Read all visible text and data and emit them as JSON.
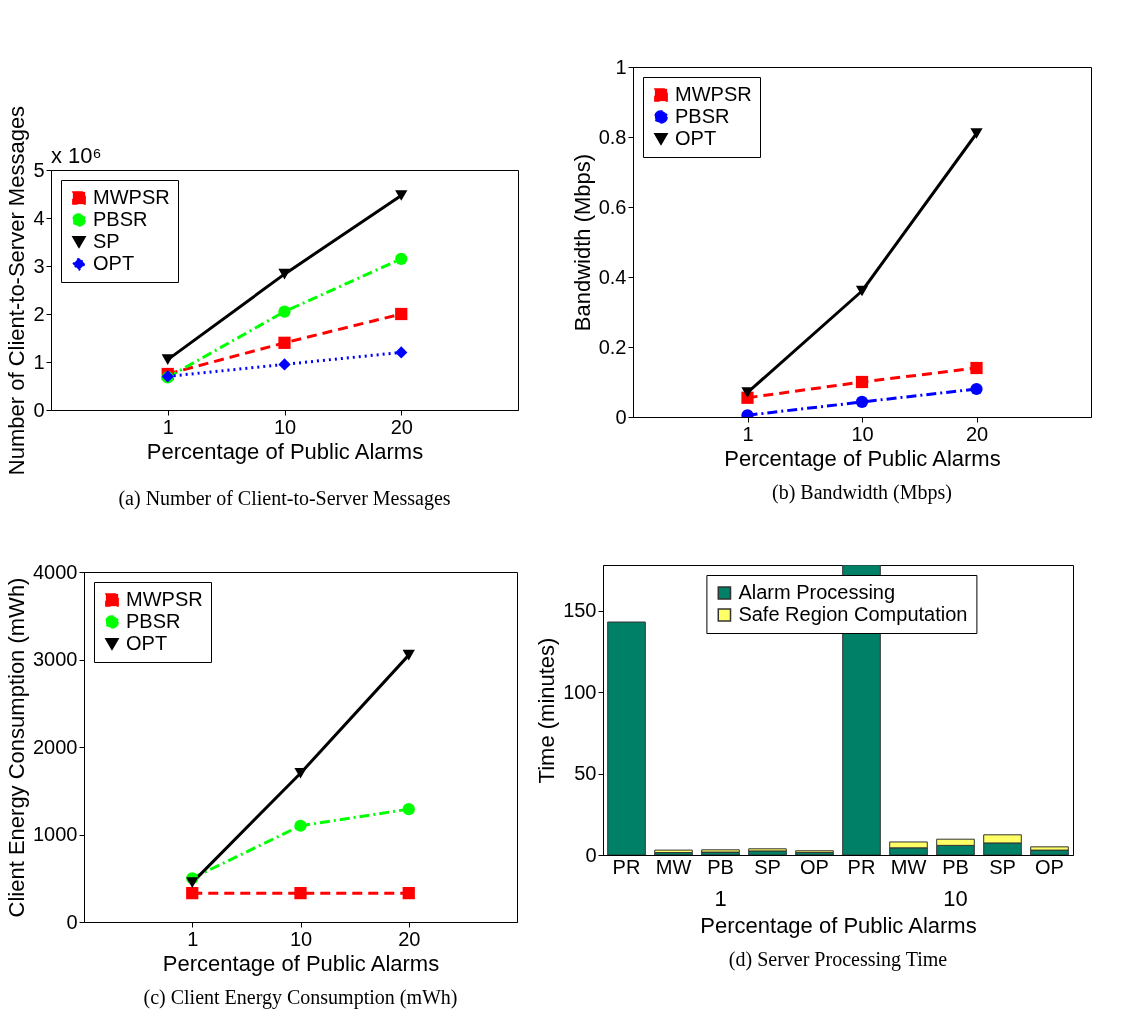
{
  "chart_data": [
    {
      "type": "line",
      "xlabel": "Percentage of Public Alarms",
      "ylabel": "Number of Client-to-Server Messages",
      "categories": [
        "1",
        "10",
        "20"
      ],
      "ylim": [
        0,
        5
      ],
      "yticks": [
        0,
        1,
        2,
        3,
        4,
        5
      ],
      "legend": "top left",
      "annotations": [
        "(a)  Number of Client-to-Server Messages",
        "x 10⁶"
      ],
      "series": [
        {
          "name": "MWPSR",
          "color": "#ff0000",
          "marker": "square",
          "line_style": "dashed",
          "values": [
            0.75,
            1.4,
            2.0
          ]
        },
        {
          "name": "PBSR",
          "color": "#00ff00",
          "marker": "circle",
          "line_style": "dashdot",
          "values": [
            0.68,
            2.05,
            3.15
          ]
        },
        {
          "name": "SP",
          "color": "#000000",
          "marker": "triangle",
          "line_style": "solid",
          "values": [
            1.05,
            2.83,
            4.47
          ]
        },
        {
          "name": "OPT",
          "color": "#0000ff",
          "marker": "diamond",
          "line_style": "dotted",
          "values": [
            0.7,
            0.95,
            1.2
          ]
        }
      ]
    },
    {
      "type": "line",
      "xlabel": "Percentage of Public Alarms",
      "ylabel": "Bandwidth (Mbps)",
      "categories": [
        "1",
        "10",
        "20"
      ],
      "ylim": [
        0,
        1
      ],
      "yticks": [
        0,
        0.2,
        0.4,
        0.6,
        0.8,
        1
      ],
      "legend": "top left",
      "annotations": [
        "(b)  Bandwidth (Mbps)"
      ],
      "series": [
        {
          "name": "MWPSR",
          "color": "#ff0000",
          "marker": "square",
          "line_style": "dashed",
          "values": [
            0.055,
            0.1,
            0.14
          ]
        },
        {
          "name": "PBSR",
          "color": "#0000ff",
          "marker": "circle",
          "line_style": "dashdot",
          "values": [
            0.005,
            0.043,
            0.08
          ]
        },
        {
          "name": "OPT",
          "color": "#000000",
          "marker": "triangle",
          "line_style": "solid",
          "values": [
            0.07,
            0.36,
            0.81
          ]
        }
      ]
    },
    {
      "type": "line",
      "xlabel": "Percentage of Public Alarms",
      "ylabel": "Client Energy Consumption (mWh)",
      "categories": [
        "1",
        "10",
        "20"
      ],
      "ylim": [
        0,
        4000
      ],
      "yticks": [
        0,
        1000,
        2000,
        3000,
        4000
      ],
      "legend": "top left",
      "annotations": [
        "(c)  Client Energy Consumption (mWh)"
      ],
      "series": [
        {
          "name": "MWPSR",
          "color": "#ff0000",
          "marker": "square",
          "line_style": "dashed",
          "values": [
            330,
            330,
            330
          ]
        },
        {
          "name": "PBSR",
          "color": "#00ff00",
          "marker": "circle",
          "line_style": "dashdot",
          "values": [
            500,
            1100,
            1290
          ]
        },
        {
          "name": "OPT",
          "color": "#000000",
          "marker": "triangle",
          "line_style": "solid",
          "values": [
            450,
            1700,
            3050
          ]
        }
      ]
    },
    {
      "type": "bar",
      "stacked": true,
      "xlabel": "Percentage of Public Alarms",
      "ylabel": "Time (minutes)",
      "categories": [
        "PR",
        "MW",
        "PB",
        "SP",
        "OP",
        "PR",
        "MW",
        "PB",
        "SP",
        "OP"
      ],
      "ylim": [
        0,
        178
      ],
      "yticks": [
        0,
        50,
        100,
        150
      ],
      "legend": "top",
      "annotations": [
        "(d)  Server Processing Time",
        "1",
        "10"
      ],
      "series": [
        {
          "name": "Alarm Processing",
          "color": "#008066",
          "values": [
            143,
            1.5,
            1.8,
            2.5,
            1.6,
            178,
            4.4,
            5.9,
            7.4,
            3
          ]
        },
        {
          "name": "Safe Region Computation",
          "color": "#ffff66",
          "values": [
            null,
            1.5,
            1.4,
            1.3,
            1.0,
            null,
            3.6,
            3.8,
            5.0,
            2
          ]
        }
      ]
    }
  ]
}
